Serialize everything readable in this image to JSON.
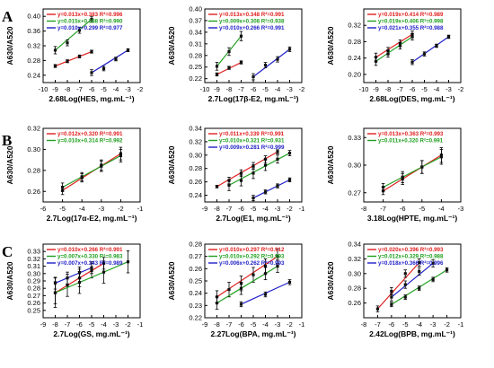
{
  "figure": {
    "row_labels": [
      "A",
      "B",
      "C"
    ],
    "colors": {
      "red": "#e02020",
      "green": "#22a022",
      "blue": "#2020c8",
      "axis": "#000000"
    }
  },
  "chart_data": [
    {
      "type": "scatter",
      "row": "A",
      "xlabel": "2.68Log(HES, mg.mL⁻¹)",
      "ylabel": "A630/A520",
      "xlim": [
        -10,
        -2
      ],
      "ylim": [
        0.22,
        0.42
      ],
      "xticks": [
        -10,
        -9,
        -8,
        -7,
        -6,
        -5,
        -4,
        -3,
        -2
      ],
      "yticks": [
        0.24,
        0.28,
        0.32,
        0.36,
        0.4
      ],
      "legend": [
        "y=0.013x+0.383 R²=0.996",
        "y=0.015x+0.388 R²=0.990",
        "y=0.010x+0.299 R²=0.977"
      ],
      "series": [
        {
          "color": "red",
          "x": [
            -9,
            -8,
            -7,
            -6
          ],
          "y": [
            0.265,
            0.278,
            0.291,
            0.304
          ],
          "err": [
            0.004,
            0.004,
            0.004,
            0.004
          ],
          "fit": [
            -9,
            -6
          ]
        },
        {
          "color": "green",
          "x": [
            -9,
            -8,
            -7,
            -6
          ],
          "y": [
            0.308,
            0.328,
            0.362,
            0.392
          ],
          "err": [
            0.01,
            0.008,
            0.008,
            0.008
          ],
          "fit": [
            -9,
            -6
          ]
        },
        {
          "color": "blue",
          "x": [
            -6,
            -5,
            -4,
            -3
          ],
          "y": [
            0.247,
            0.258,
            0.284,
            0.308
          ],
          "err": [
            0.008,
            0.006,
            0.005,
            0.004
          ],
          "fit": [
            -6,
            -3
          ]
        }
      ]
    },
    {
      "type": "scatter",
      "row": "A",
      "xlabel": "2.7Log(17β-E2, mg.mL⁻¹)",
      "ylabel": "A630/A520",
      "xlim": [
        -10,
        -2
      ],
      "ylim": [
        0.21,
        0.4
      ],
      "xticks": [
        -10,
        -9,
        -8,
        -7,
        -6,
        -5,
        -4,
        -3,
        -2
      ],
      "yticks": [
        0.22,
        0.25,
        0.28,
        0.31,
        0.34,
        0.37,
        0.4
      ],
      "legend": [
        "y=0.013x+0.348 R²=0.991",
        "y=0.009x+0.308 R²=0.938",
        "y=0.010x+0.266 R²=0.991"
      ],
      "series": [
        {
          "color": "red",
          "x": [
            -9,
            -8,
            -7
          ],
          "y": [
            0.231,
            0.248,
            0.262
          ],
          "err": [
            0.004,
            0.004,
            0.004
          ],
          "fit": [
            -9,
            -7
          ]
        },
        {
          "color": "green",
          "x": [
            -9,
            -8,
            -7
          ],
          "y": [
            0.252,
            0.29,
            0.33
          ],
          "err": [
            0.01,
            0.01,
            0.012
          ],
          "fit": [
            -9,
            -7
          ]
        },
        {
          "color": "blue",
          "x": [
            -6,
            -5,
            -4,
            -3
          ],
          "y": [
            0.225,
            0.255,
            0.27,
            0.296
          ],
          "err": [
            0.008,
            0.007,
            0.007,
            0.006
          ],
          "fit": [
            -6,
            -3
          ]
        }
      ]
    },
    {
      "type": "scatter",
      "row": "A",
      "xlabel": "2.68Log(DES, mg.mL⁻¹)",
      "ylabel": "A630/A520",
      "xlim": [
        -10,
        -2
      ],
      "ylim": [
        0.18,
        0.36
      ],
      "xticks": [
        -10,
        -9,
        -8,
        -7,
        -6,
        -5,
        -4,
        -3,
        -2
      ],
      "yticks": [
        0.2,
        0.24,
        0.28,
        0.32
      ],
      "legend": [
        "y=0.019x+0.414 R²=0.989",
        "y=0.019x+0.406 R²=0.998",
        "y=0.021x+0.355 R²=0.988"
      ],
      "series": [
        {
          "color": "red",
          "x": [
            -9,
            -8,
            -7,
            -6
          ],
          "y": [
            0.242,
            0.258,
            0.276,
            0.298
          ],
          "err": [
            0.01,
            0.008,
            0.008,
            0.008
          ],
          "fit": [
            -9,
            -6
          ]
        },
        {
          "color": "green",
          "x": [
            -9,
            -8,
            -7,
            -6
          ],
          "y": [
            0.232,
            0.25,
            0.27,
            0.292
          ],
          "err": [
            0.01,
            0.008,
            0.008,
            0.008
          ],
          "fit": [
            -9,
            -6
          ]
        },
        {
          "color": "blue",
          "x": [
            -6,
            -5,
            -4,
            -3
          ],
          "y": [
            0.23,
            0.25,
            0.27,
            0.292
          ],
          "err": [
            0.006,
            0.005,
            0.004,
            0.004
          ],
          "fit": [
            -6,
            -3
          ]
        }
      ]
    },
    {
      "type": "scatter",
      "row": "B",
      "xlabel": "2.7Log(17α-E2, mg.mL⁻¹)",
      "ylabel": "A630/A520",
      "xlim": [
        -6,
        -1
      ],
      "ylim": [
        0.25,
        0.32
      ],
      "xticks": [
        -6,
        -5,
        -4,
        -3,
        -2,
        -1
      ],
      "yticks": [
        0.26,
        0.28,
        0.3,
        0.32
      ],
      "legend": [
        "y=0.012x+0.320 R²=0.991",
        "y=0.010x+0.314 R²=0.992"
      ],
      "series": [
        {
          "color": "red",
          "x": [
            -5,
            -4,
            -3,
            -2
          ],
          "y": [
            0.261,
            0.273,
            0.285,
            0.296
          ],
          "err": [
            0.004,
            0.004,
            0.005,
            0.006
          ],
          "fit": [
            -5,
            -2
          ]
        },
        {
          "color": "green",
          "x": [
            -5,
            -4,
            -3,
            -2
          ],
          "y": [
            0.264,
            0.274,
            0.284,
            0.294
          ],
          "err": [
            0.004,
            0.004,
            0.005,
            0.006
          ],
          "fit": [
            -5,
            -2
          ]
        }
      ]
    },
    {
      "type": "scatter",
      "row": "B",
      "xlabel": "2.7Log(E1, mg.mL⁻¹)",
      "ylabel": "A630/A520",
      "xlim": [
        -9,
        -1
      ],
      "ylim": [
        0.23,
        0.34
      ],
      "xticks": [
        -9,
        -8,
        -7,
        -6,
        -5,
        -4,
        -3,
        -2,
        -1
      ],
      "yticks": [
        0.24,
        0.26,
        0.28,
        0.3,
        0.32,
        0.34
      ],
      "legend": [
        "y=0.011x+0.339 R²=0.991",
        "y=0.010x+0.321 R²=0.931",
        "y=0.009x+0.281 R²=0.999"
      ],
      "series": [
        {
          "color": "red",
          "x": [
            -8,
            -7,
            -6,
            -5,
            -4,
            -3
          ],
          "y": [
            0.253,
            0.262,
            0.273,
            0.284,
            0.294,
            0.305
          ],
          "err": [
            0.002,
            0.005,
            0.005,
            0.005,
            0.005,
            0.003
          ],
          "fit": [
            -8,
            -3
          ]
        },
        {
          "color": "green",
          "x": [
            -7,
            -6,
            -5,
            -4,
            -3,
            -2
          ],
          "y": [
            0.255,
            0.262,
            0.273,
            0.285,
            0.294,
            0.303
          ],
          "err": [
            0.008,
            0.008,
            0.008,
            0.008,
            0.006,
            0.004
          ],
          "fit": [
            -7,
            -2
          ]
        },
        {
          "color": "blue",
          "x": [
            -5,
            -4,
            -3,
            -2
          ],
          "y": [
            0.236,
            0.245,
            0.254,
            0.263
          ],
          "err": [
            0.004,
            0.003,
            0.003,
            0.003
          ],
          "fit": [
            -5,
            -2
          ]
        }
      ]
    },
    {
      "type": "scatter",
      "row": "B",
      "xlabel": "3.18Log(HPTE, mg.mL⁻¹)",
      "ylabel": "A630/A520",
      "xlim": [
        -8,
        -3
      ],
      "ylim": [
        0.26,
        0.34
      ],
      "xticks": [
        -8,
        -7,
        -6,
        -5,
        -4,
        -3
      ],
      "yticks": [
        0.27,
        0.3,
        0.33
      ],
      "legend": [
        "y=0.013x+0.363 R²=0.993",
        "y=0.011x+0.320 R²=0.991"
      ],
      "series": [
        {
          "color": "red",
          "x": [
            -7,
            -6,
            -5,
            -4
          ],
          "y": [
            0.272,
            0.285,
            0.298,
            0.311
          ],
          "err": [
            0.004,
            0.006,
            0.007,
            0.008
          ],
          "fit": [
            -7,
            -4
          ]
        },
        {
          "color": "green",
          "x": [
            -7,
            -6,
            -5,
            -4
          ],
          "y": [
            0.276,
            0.287,
            0.298,
            0.309
          ],
          "err": [
            0.004,
            0.006,
            0.007,
            0.008
          ],
          "fit": [
            -7,
            -4
          ]
        }
      ]
    },
    {
      "type": "scatter",
      "row": "C",
      "xlabel": "2.7Log(GS, mg.mL⁻¹)",
      "ylabel": "A630/A520",
      "xlim": [
        -9,
        -1
      ],
      "ylim": [
        0.24,
        0.34
      ],
      "xticks": [
        -9,
        -8,
        -7,
        -6,
        -5,
        -4,
        -3,
        -2,
        -1
      ],
      "yticks": [
        0.25,
        0.26,
        0.27,
        0.28,
        0.29,
        0.3,
        0.31,
        0.32,
        0.33
      ],
      "legend": [
        "y=0.010x+0.266 R²=0.991",
        "y=0.007x+0.330 R²=0.983",
        "y=0.007x+0.343 R²=0.989"
      ],
      "series": [
        {
          "color": "red",
          "x": [
            -8,
            -7,
            -6,
            -5,
            -4
          ],
          "y": [
            0.274,
            0.284,
            0.294,
            0.304,
            0.314
          ],
          "err": [
            0.015,
            0.015,
            0.012,
            0.01,
            0.008
          ],
          "fit": [
            -8,
            -4
          ]
        },
        {
          "color": "green",
          "x": [
            -8,
            -6,
            -4,
            -2
          ],
          "y": [
            0.274,
            0.288,
            0.302,
            0.316
          ],
          "err": [
            0.02,
            0.015,
            0.015,
            0.015
          ],
          "fit": [
            -8,
            -2
          ]
        },
        {
          "color": "blue",
          "x": [
            -8,
            -7,
            -6,
            -5
          ],
          "y": [
            0.287,
            0.294,
            0.301,
            0.308
          ],
          "err": [
            0.008,
            0.008,
            0.008,
            0.008
          ],
          "fit": [
            -8,
            -5
          ]
        }
      ]
    },
    {
      "type": "scatter",
      "row": "C",
      "xlabel": "2.27Log(BPA, mg.mL⁻¹)",
      "ylabel": "A630/A520",
      "xlim": [
        -9,
        -1
      ],
      "ylim": [
        0.22,
        0.28
      ],
      "xticks": [
        -9,
        -8,
        -7,
        -6,
        -5,
        -4,
        -3,
        -2,
        -1
      ],
      "yticks": [
        0.22,
        0.23,
        0.24,
        0.25,
        0.26,
        0.27,
        0.28
      ],
      "legend": [
        "y=0.010x+0.297 R²=0.912",
        "y=0.010x+0.292 R²=0.993",
        "y=0.006x+0.262 R²=0.993"
      ],
      "series": [
        {
          "color": "red",
          "x": [
            -8,
            -7,
            -6,
            -5,
            -4,
            -3
          ],
          "y": [
            0.237,
            0.243,
            0.248,
            0.255,
            0.262,
            0.27
          ],
          "err": [
            0.005,
            0.006,
            0.006,
            0.006,
            0.006,
            0.006
          ],
          "fit": [
            -8,
            -3
          ]
        },
        {
          "color": "green",
          "x": [
            -8,
            -6,
            -4,
            -3
          ],
          "y": [
            0.232,
            0.244,
            0.256,
            0.262
          ],
          "err": [
            0.005,
            0.005,
            0.005,
            0.005
          ],
          "fit": [
            -8,
            -3
          ]
        },
        {
          "color": "blue",
          "x": [
            -6,
            -4,
            -2
          ],
          "y": [
            0.231,
            0.239,
            0.249
          ],
          "err": [
            0.002,
            0.002,
            0.002
          ],
          "fit": [
            -6,
            -2
          ]
        }
      ]
    },
    {
      "type": "scatter",
      "row": "C",
      "xlabel": "2.42Log(BPB, mg.mL⁻¹)",
      "ylabel": "A630/A520",
      "xlim": [
        -8,
        -1
      ],
      "ylim": [
        0.24,
        0.34
      ],
      "xticks": [
        -8,
        -7,
        -6,
        -5,
        -4,
        -3,
        -2,
        -1
      ],
      "yticks": [
        0.26,
        0.28,
        0.3,
        0.32,
        0.34
      ],
      "legend": [
        "y=0.020x+0.396 R²=0.993",
        "y=0.012x+0.329 R²=0.988",
        "y=0.018x+0.366 R²=0.996"
      ],
      "series": [
        {
          "color": "red",
          "x": [
            -7,
            -6,
            -5,
            -4
          ],
          "y": [
            0.252,
            0.276,
            0.3,
            0.315
          ],
          "err": [
            0.004,
            0.005,
            0.005,
            0.005
          ],
          "fit": [
            -7,
            -4
          ]
        },
        {
          "color": "green",
          "x": [
            -6,
            -5,
            -4,
            -3,
            -2
          ],
          "y": [
            0.258,
            0.268,
            0.28,
            0.292,
            0.305
          ],
          "err": [
            0.003,
            0.003,
            0.003,
            0.003,
            0.003
          ],
          "fit": [
            -6,
            -2
          ]
        },
        {
          "color": "blue",
          "x": [
            -6,
            -5,
            -4,
            -3
          ],
          "y": [
            0.268,
            0.285,
            0.303,
            0.314
          ],
          "err": [
            0.005,
            0.005,
            0.005,
            0.005
          ],
          "fit": [
            -6,
            -3
          ]
        }
      ]
    }
  ]
}
